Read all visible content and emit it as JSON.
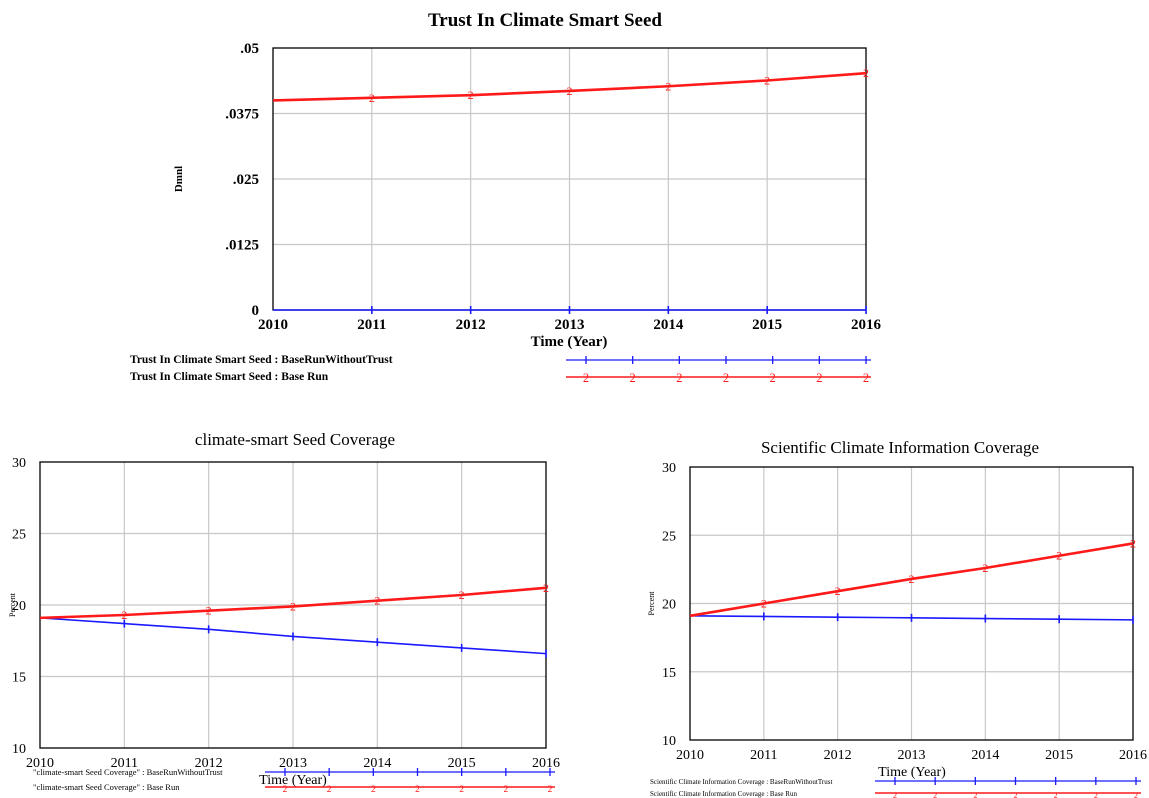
{
  "colors": {
    "series1": "#1a1aff",
    "series2": "#ff1a1a",
    "grid": "#c8c8c8",
    "axis": "#000000"
  },
  "chart_data": [
    {
      "id": "trust",
      "type": "line",
      "title": "Trust In Climate Smart Seed",
      "xlabel": "Time (Year)",
      "ylabel": "Dmnl",
      "x": [
        2010,
        2011,
        2012,
        2013,
        2014,
        2015,
        2016
      ],
      "xticks": [
        "2010",
        "2011",
        "2012",
        "2013",
        "2014",
        "2015",
        "2016"
      ],
      "yticks": [
        {
          "value": 0,
          "label": "0"
        },
        {
          "value": 0.0125,
          "label": ".0125"
        },
        {
          "value": 0.025,
          "label": ".025"
        },
        {
          "value": 0.0375,
          "label": ".0375"
        },
        {
          "value": 0.05,
          "label": ".05"
        }
      ],
      "ylim": [
        0,
        0.05
      ],
      "grid": true,
      "series": [
        {
          "name": "Trust In Climate Smart Seed : BaseRunWithoutTrust",
          "marker": "1",
          "values": [
            0,
            0,
            0,
            0,
            0,
            0,
            0
          ]
        },
        {
          "name": "Trust In Climate Smart Seed : Base Run",
          "marker": "2",
          "values": [
            0.04,
            0.0405,
            0.041,
            0.0418,
            0.0427,
            0.0438,
            0.0452
          ]
        }
      ]
    },
    {
      "id": "seed",
      "type": "line",
      "title": "climate-smart Seed Coverage",
      "xlabel": "Time (Year)",
      "ylabel": "Percent",
      "x": [
        2010,
        2011,
        2012,
        2013,
        2014,
        2015,
        2016
      ],
      "xticks": [
        "2010",
        "2011",
        "2012",
        "2013",
        "2014",
        "2015",
        "2016"
      ],
      "yticks": [
        {
          "value": 10,
          "label": "10"
        },
        {
          "value": 15,
          "label": "15"
        },
        {
          "value": 20,
          "label": "20"
        },
        {
          "value": 25,
          "label": "25"
        },
        {
          "value": 30,
          "label": "30"
        }
      ],
      "ylim": [
        10,
        30
      ],
      "grid": true,
      "series": [
        {
          "name": "\"climate-smart Seed Coverage\" : BaseRunWithoutTrust",
          "marker": "1",
          "values": [
            19.1,
            18.7,
            18.3,
            17.8,
            17.4,
            17.0,
            16.6
          ]
        },
        {
          "name": "\"climate-smart Seed Coverage\" : Base Run",
          "marker": "2",
          "values": [
            19.1,
            19.3,
            19.6,
            19.9,
            20.3,
            20.7,
            21.2
          ]
        }
      ]
    },
    {
      "id": "sci",
      "type": "line",
      "title": "Scientific Climate Information Coverage",
      "xlabel": "Time (Year)",
      "ylabel": "Percent",
      "x": [
        2010,
        2011,
        2012,
        2013,
        2014,
        2015,
        2016
      ],
      "xticks": [
        "2010",
        "2011",
        "2012",
        "2013",
        "2014",
        "2015",
        "2016"
      ],
      "yticks": [
        {
          "value": 10,
          "label": "10"
        },
        {
          "value": 15,
          "label": "15"
        },
        {
          "value": 20,
          "label": "20"
        },
        {
          "value": 25,
          "label": "25"
        },
        {
          "value": 30,
          "label": "30"
        }
      ],
      "ylim": [
        10,
        30
      ],
      "grid": true,
      "series": [
        {
          "name": "Scientific Climate Information Coverage : BaseRunWithoutTrust",
          "marker": "1",
          "values": [
            19.1,
            19.05,
            19.0,
            18.95,
            18.9,
            18.85,
            18.8
          ]
        },
        {
          "name": "Scientific Climate Information Coverage : Base Run",
          "marker": "2",
          "values": [
            19.1,
            20.0,
            20.9,
            21.8,
            22.6,
            23.5,
            24.4
          ]
        }
      ]
    }
  ]
}
